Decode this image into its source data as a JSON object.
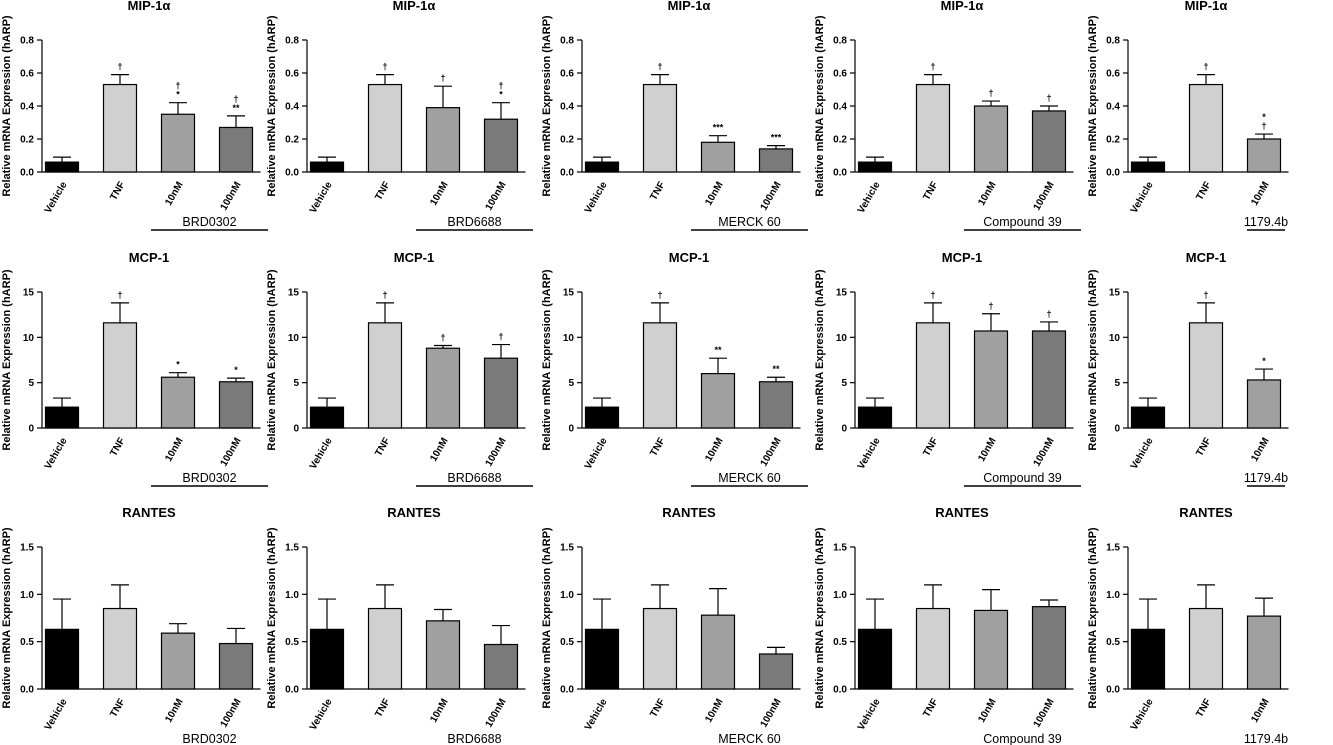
{
  "chart_data": [
    {
      "type": "bar",
      "title": "MIP-1α",
      "ylabel": "Relative mRNA Expression (hARP)",
      "ylim": [
        0,
        0.8
      ],
      "yticks": [
        "0.0",
        "0.2",
        "0.4",
        "0.6",
        "0.8"
      ],
      "categories": [
        "Vehicle",
        "TNF",
        "10nM",
        "100nM"
      ],
      "values": [
        0.06,
        0.53,
        0.35,
        0.27
      ],
      "errors": [
        0.03,
        0.06,
        0.07,
        0.07
      ],
      "annotations": [
        "",
        "†",
        "†\n*",
        "†\n**"
      ],
      "group_label": "BRD0302",
      "colors": [
        "#000000",
        "#d0d0d0",
        "#a0a0a0",
        "#7a7a7a"
      ]
    },
    {
      "type": "bar",
      "title": "MIP-1α",
      "ylabel": "Relative mRNA Expression (hARP)",
      "ylim": [
        0,
        0.8
      ],
      "yticks": [
        "0.0",
        "0.2",
        "0.4",
        "0.6",
        "0.8"
      ],
      "categories": [
        "Vehicle",
        "TNF",
        "10nM",
        "100nM"
      ],
      "values": [
        0.06,
        0.53,
        0.39,
        0.32
      ],
      "errors": [
        0.03,
        0.06,
        0.13,
        0.1
      ],
      "annotations": [
        "",
        "†",
        "†",
        "†\n*"
      ],
      "group_label": "BRD6688",
      "colors": [
        "#000000",
        "#d0d0d0",
        "#a0a0a0",
        "#7a7a7a"
      ]
    },
    {
      "type": "bar",
      "title": "MIP-1α",
      "ylabel": "Relative mRNA Expression (hARP)",
      "ylim": [
        0,
        0.8
      ],
      "yticks": [
        "0.0",
        "0.2",
        "0.4",
        "0.6",
        "0.8"
      ],
      "categories": [
        "Vehicle",
        "TNF",
        "10nM",
        "100nM"
      ],
      "values": [
        0.06,
        0.53,
        0.18,
        0.14
      ],
      "errors": [
        0.03,
        0.06,
        0.04,
        0.02
      ],
      "annotations": [
        "",
        "†",
        "***",
        "***"
      ],
      "group_label": "MERCK 60",
      "colors": [
        "#000000",
        "#d0d0d0",
        "#a0a0a0",
        "#7a7a7a"
      ]
    },
    {
      "type": "bar",
      "title": "MIP-1α",
      "ylabel": "Relative mRNA Expression (hARP)",
      "ylim": [
        0,
        0.8
      ],
      "yticks": [
        "0.0",
        "0.2",
        "0.4",
        "0.6",
        "0.8"
      ],
      "categories": [
        "Vehicle",
        "TNF",
        "10nM",
        "100nM"
      ],
      "values": [
        0.06,
        0.53,
        0.4,
        0.37
      ],
      "errors": [
        0.03,
        0.06,
        0.03,
        0.03
      ],
      "annotations": [
        "",
        "†",
        "†",
        "†"
      ],
      "group_label": "Compound 39",
      "colors": [
        "#000000",
        "#d0d0d0",
        "#a0a0a0",
        "#7a7a7a"
      ]
    },
    {
      "type": "bar",
      "title": "MIP-1α",
      "ylabel": "Relative mRNA Expression (hARP)",
      "ylim": [
        0,
        0.8
      ],
      "yticks": [
        "0.0",
        "0.2",
        "0.4",
        "0.6",
        "0.8"
      ],
      "categories": [
        "Vehicle",
        "TNF",
        "10nM"
      ],
      "values": [
        0.06,
        0.53,
        0.2
      ],
      "errors": [
        0.03,
        0.06,
        0.03
      ],
      "annotations": [
        "",
        "†",
        "*\n†"
      ],
      "group_label": "1179.4b",
      "colors": [
        "#000000",
        "#d0d0d0",
        "#a0a0a0"
      ]
    },
    {
      "type": "bar",
      "title": "MCP-1",
      "ylabel": "Relative mRNA Expression (hARP)",
      "ylim": [
        0,
        15
      ],
      "yticks": [
        "0",
        "5",
        "10",
        "15"
      ],
      "categories": [
        "Vehicle",
        "TNF",
        "10nM",
        "100nM"
      ],
      "values": [
        2.3,
        11.6,
        5.6,
        5.1
      ],
      "errors": [
        1.0,
        2.2,
        0.5,
        0.4
      ],
      "annotations": [
        "",
        "†",
        "*",
        "*"
      ],
      "group_label": "BRD0302",
      "colors": [
        "#000000",
        "#d0d0d0",
        "#a0a0a0",
        "#7a7a7a"
      ]
    },
    {
      "type": "bar",
      "title": "MCP-1",
      "ylabel": "Relative mRNA Expression (hARP)",
      "ylim": [
        0,
        15
      ],
      "yticks": [
        "0",
        "5",
        "10",
        "15"
      ],
      "categories": [
        "Vehicle",
        "TNF",
        "10nM",
        "100nM"
      ],
      "values": [
        2.3,
        11.6,
        8.8,
        7.7
      ],
      "errors": [
        1.0,
        2.2,
        0.3,
        1.5
      ],
      "annotations": [
        "",
        "†",
        "†",
        "†"
      ],
      "group_label": "BRD6688",
      "colors": [
        "#000000",
        "#d0d0d0",
        "#a0a0a0",
        "#7a7a7a"
      ]
    },
    {
      "type": "bar",
      "title": "MCP-1",
      "ylabel": "Relative mRNA Expression (hARP)",
      "ylim": [
        0,
        15
      ],
      "yticks": [
        "0",
        "5",
        "10",
        "15"
      ],
      "categories": [
        "Vehicle",
        "TNF",
        "10nM",
        "100nM"
      ],
      "values": [
        2.3,
        11.6,
        6.0,
        5.1
      ],
      "errors": [
        1.0,
        2.2,
        1.7,
        0.5
      ],
      "annotations": [
        "",
        "†",
        "**",
        "**"
      ],
      "group_label": "MERCK 60",
      "colors": [
        "#000000",
        "#d0d0d0",
        "#a0a0a0",
        "#7a7a7a"
      ]
    },
    {
      "type": "bar",
      "title": "MCP-1",
      "ylabel": "Relative mRNA Expression (hARP)",
      "ylim": [
        0,
        15
      ],
      "yticks": [
        "0",
        "5",
        "10",
        "15"
      ],
      "categories": [
        "Vehicle",
        "TNF",
        "10nM",
        "100nM"
      ],
      "values": [
        2.3,
        11.6,
        10.7,
        10.7
      ],
      "errors": [
        1.0,
        2.2,
        1.9,
        1.0
      ],
      "annotations": [
        "",
        "†",
        "†",
        "†"
      ],
      "group_label": "Compound 39",
      "colors": [
        "#000000",
        "#d0d0d0",
        "#a0a0a0",
        "#7a7a7a"
      ]
    },
    {
      "type": "bar",
      "title": "MCP-1",
      "ylabel": "Relative mRNA Expression (hARP)",
      "ylim": [
        0,
        15
      ],
      "yticks": [
        "0",
        "5",
        "10",
        "15"
      ],
      "categories": [
        "Vehicle",
        "TNF",
        "10nM"
      ],
      "values": [
        2.3,
        11.6,
        5.3
      ],
      "errors": [
        1.0,
        2.2,
        1.2
      ],
      "annotations": [
        "",
        "†",
        "*"
      ],
      "group_label": "1179.4b",
      "colors": [
        "#000000",
        "#d0d0d0",
        "#a0a0a0"
      ]
    },
    {
      "type": "bar",
      "title": "RANTES",
      "ylabel": "Relative mRNA Expression (hARP)",
      "ylim": [
        0,
        1.5
      ],
      "yticks": [
        "0.0",
        "0.5",
        "1.0",
        "1.5"
      ],
      "categories": [
        "Vehicle",
        "TNF",
        "10nM",
        "100nM"
      ],
      "values": [
        0.63,
        0.85,
        0.59,
        0.48
      ],
      "errors": [
        0.32,
        0.25,
        0.1,
        0.16
      ],
      "annotations": [
        "",
        "",
        "",
        ""
      ],
      "group_label": "BRD0302",
      "colors": [
        "#000000",
        "#d0d0d0",
        "#a0a0a0",
        "#7a7a7a"
      ]
    },
    {
      "type": "bar",
      "title": "RANTES",
      "ylabel": "Relative mRNA Expression (hARP)",
      "ylim": [
        0,
        1.5
      ],
      "yticks": [
        "0.0",
        "0.5",
        "1.0",
        "1.5"
      ],
      "categories": [
        "Vehicle",
        "TNF",
        "10nM",
        "100nM"
      ],
      "values": [
        0.63,
        0.85,
        0.72,
        0.47
      ],
      "errors": [
        0.32,
        0.25,
        0.12,
        0.2
      ],
      "annotations": [
        "",
        "",
        "",
        ""
      ],
      "group_label": "BRD6688",
      "colors": [
        "#000000",
        "#d0d0d0",
        "#a0a0a0",
        "#7a7a7a"
      ]
    },
    {
      "type": "bar",
      "title": "RANTES",
      "ylabel": "Relative mRNA Expression (hARP)",
      "ylim": [
        0,
        1.5
      ],
      "yticks": [
        "0.0",
        "0.5",
        "1.0",
        "1.5"
      ],
      "categories": [
        "Vehicle",
        "TNF",
        "10nM",
        "100nM"
      ],
      "values": [
        0.63,
        0.85,
        0.78,
        0.37
      ],
      "errors": [
        0.32,
        0.25,
        0.28,
        0.07
      ],
      "annotations": [
        "",
        "",
        "",
        ""
      ],
      "group_label": "MERCK 60",
      "colors": [
        "#000000",
        "#d0d0d0",
        "#a0a0a0",
        "#7a7a7a"
      ]
    },
    {
      "type": "bar",
      "title": "RANTES",
      "ylabel": "Relative mRNA Expression (hARP)",
      "ylim": [
        0,
        1.5
      ],
      "yticks": [
        "0.0",
        "0.5",
        "1.0",
        "1.5"
      ],
      "categories": [
        "Vehicle",
        "TNF",
        "10nM",
        "100nM"
      ],
      "values": [
        0.63,
        0.85,
        0.83,
        0.87
      ],
      "errors": [
        0.32,
        0.25,
        0.22,
        0.07
      ],
      "annotations": [
        "",
        "",
        "",
        ""
      ],
      "group_label": "Compound 39",
      "colors": [
        "#000000",
        "#d0d0d0",
        "#a0a0a0",
        "#7a7a7a"
      ]
    },
    {
      "type": "bar",
      "title": "RANTES",
      "ylabel": "Relative mRNA Expression (hARP)",
      "ylim": [
        0,
        1.5
      ],
      "yticks": [
        "0.0",
        "0.5",
        "1.0",
        "1.5"
      ],
      "categories": [
        "Vehicle",
        "TNF",
        "10nM"
      ],
      "values": [
        0.63,
        0.85,
        0.77
      ],
      "errors": [
        0.32,
        0.25,
        0.19
      ],
      "annotations": [
        "",
        "",
        ""
      ],
      "group_label": "1179.4b",
      "colors": [
        "#000000",
        "#d0d0d0",
        "#a0a0a0"
      ]
    }
  ]
}
